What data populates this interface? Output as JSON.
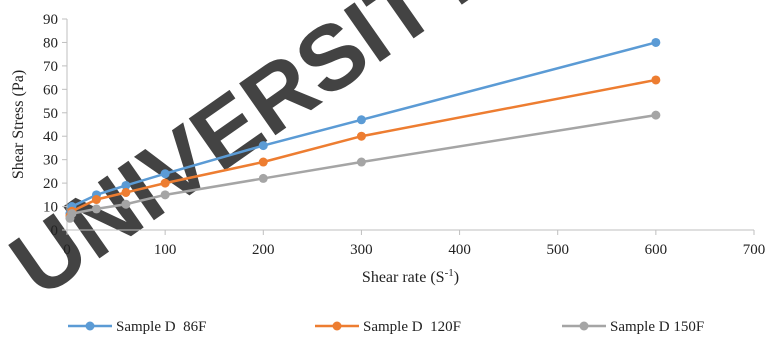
{
  "watermark": {
    "text": "UNIVERSITY OF",
    "color": "#ffe100"
  },
  "chart_data": {
    "type": "line",
    "title": "",
    "xlabel": "Shear rate (S",
    "xlabel_superscript": "-1",
    "xlabel_suffix": ")",
    "ylabel": "Shear Stress (Pa)",
    "xlim": [
      0,
      700
    ],
    "ylim": [
      0,
      90
    ],
    "x_ticks": [
      0,
      100,
      200,
      300,
      400,
      500,
      600,
      700
    ],
    "y_ticks": [
      0,
      10,
      20,
      30,
      40,
      50,
      60,
      70,
      80,
      90
    ],
    "grid": false,
    "legend_position": "bottom",
    "series": [
      {
        "name": "Sample D  86F",
        "color": "#5b9bd5",
        "x": [
          3,
          5,
          30,
          60,
          100,
          200,
          300,
          600
        ],
        "y": [
          7,
          10,
          15,
          19,
          24,
          36,
          47,
          80
        ]
      },
      {
        "name": "Sample D  120F",
        "color": "#ed7d31",
        "x": [
          3,
          5,
          30,
          60,
          100,
          200,
          300,
          600
        ],
        "y": [
          6,
          8,
          13,
          16,
          20,
          29,
          40,
          64
        ]
      },
      {
        "name": "Sample D 150F",
        "color": "#a5a5a5",
        "x": [
          3,
          5,
          30,
          60,
          100,
          200,
          300,
          600
        ],
        "y": [
          5,
          7,
          9,
          11,
          15,
          22,
          29,
          49
        ]
      }
    ]
  }
}
